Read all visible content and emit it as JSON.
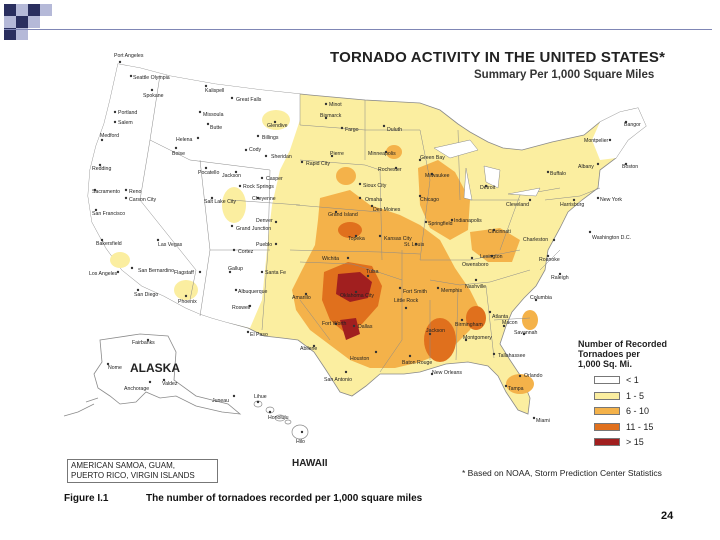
{
  "title": "TORNADO ACTIVITY IN THE UNITED STATES*",
  "subtitle": "Summary Per 1,000 Square Miles",
  "legend": {
    "title_lines": [
      "Number of Recorded",
      "Tornadoes per",
      "1,000 Sq. Mi."
    ],
    "items": [
      {
        "label": "< 1",
        "color": "#ffffff"
      },
      {
        "label": "1 - 5",
        "color": "#fbeea0"
      },
      {
        "label": "6 - 10",
        "color": "#f4b24a"
      },
      {
        "label": "11 - 15",
        "color": "#e0701d"
      },
      {
        "label": "> 15",
        "color": "#a11f1f"
      }
    ]
  },
  "territories_note": [
    "AMERICAN SAMOA, GUAM,",
    "PUERTO RICO, VIRGIN ISLANDS"
  ],
  "source_note": "* Based on NOAA, Storm Prediction Center Statistics",
  "region_labels": {
    "alaska": "ALASKA",
    "hawaii": "HAWAII"
  },
  "caption": {
    "figure": "Figure I.1",
    "text": "The number of tornadoes recorded per 1,000 square miles"
  },
  "page_number": "24",
  "colors": {
    "land": "#fbeea0",
    "no_data": "#ffffff",
    "border": "#8a8a8a",
    "moderate": "#f4b24a",
    "high": "#e0701d",
    "very_high": "#a11f1f"
  },
  "cities": [
    {
      "name": "Port Angeles"
    },
    {
      "name": "Seattle Olympia"
    },
    {
      "name": "Spokane"
    },
    {
      "name": "Portland"
    },
    {
      "name": "Salem"
    },
    {
      "name": "Medford"
    },
    {
      "name": "Redding"
    },
    {
      "name": "Sacramento"
    },
    {
      "name": "Reno"
    },
    {
      "name": "Carson City"
    },
    {
      "name": "San Francisco"
    },
    {
      "name": "Bakersfield"
    },
    {
      "name": "Las Vegas"
    },
    {
      "name": "Los Angeles"
    },
    {
      "name": "San Bernardino"
    },
    {
      "name": "San Diego"
    },
    {
      "name": "Phoenix"
    },
    {
      "name": "Flagstaff"
    },
    {
      "name": "Gallup"
    },
    {
      "name": "Santa Fe"
    },
    {
      "name": "Albuquerque"
    },
    {
      "name": "Roswell"
    },
    {
      "name": "El Paso"
    },
    {
      "name": "Boise"
    },
    {
      "name": "Pocatello"
    },
    {
      "name": "Salt Lake City"
    },
    {
      "name": "Helena"
    },
    {
      "name": "Butte"
    },
    {
      "name": "Kalispell"
    },
    {
      "name": "Great Falls"
    },
    {
      "name": "Missoula"
    },
    {
      "name": "Billings"
    },
    {
      "name": "Glendive"
    },
    {
      "name": "Cody"
    },
    {
      "name": "Sheridan"
    },
    {
      "name": "Casper"
    },
    {
      "name": "Jackson"
    },
    {
      "name": "Rock Springs"
    },
    {
      "name": "Cheyenne"
    },
    {
      "name": "Denver"
    },
    {
      "name": "Grand Junction"
    },
    {
      "name": "Pueblo"
    },
    {
      "name": "Cortez"
    },
    {
      "name": "Minot"
    },
    {
      "name": "Bismarck"
    },
    {
      "name": "Fargo"
    },
    {
      "name": "Pierre"
    },
    {
      "name": "Rapid City"
    },
    {
      "name": "Duluth"
    },
    {
      "name": "Minneapolis"
    },
    {
      "name": "Rochester"
    },
    {
      "name": "Green Bay"
    },
    {
      "name": "Milwaukee"
    },
    {
      "name": "Sioux City"
    },
    {
      "name": "Omaha"
    },
    {
      "name": "Des Moines"
    },
    {
      "name": "Grand Island"
    },
    {
      "name": "Chicago"
    },
    {
      "name": "Springfield"
    },
    {
      "name": "Indianapolis"
    },
    {
      "name": "Topeka"
    },
    {
      "name": "Kansas City"
    },
    {
      "name": "St. Louis"
    },
    {
      "name": "Wichita"
    },
    {
      "name": "Amarillo"
    },
    {
      "name": "Tulsa"
    },
    {
      "name": "Oklahoma City"
    },
    {
      "name": "Fort Smith"
    },
    {
      "name": "Little Rock"
    },
    {
      "name": "Memphis"
    },
    {
      "name": "Nashville"
    },
    {
      "name": "Owensboro"
    },
    {
      "name": "Lexington"
    },
    {
      "name": "Cincinnati"
    },
    {
      "name": "Detroit"
    },
    {
      "name": "Cleveland"
    },
    {
      "name": "Buffalo"
    },
    {
      "name": "Albany"
    },
    {
      "name": "Montpelier"
    },
    {
      "name": "Bangor"
    },
    {
      "name": "Boston"
    },
    {
      "name": "New York"
    },
    {
      "name": "Harrisburg"
    },
    {
      "name": "Washington D.C."
    },
    {
      "name": "Charleston"
    },
    {
      "name": "Roanoke"
    },
    {
      "name": "Raleigh"
    },
    {
      "name": "Columbia"
    },
    {
      "name": "Atlanta"
    },
    {
      "name": "Macon"
    },
    {
      "name": "Savannah"
    },
    {
      "name": "Birmingham"
    },
    {
      "name": "Montgomery"
    },
    {
      "name": "Jackson"
    },
    {
      "name": "Baton Rouge"
    },
    {
      "name": "New Orleans"
    },
    {
      "name": "Tallahassee"
    },
    {
      "name": "Orlando"
    },
    {
      "name": "Tampa"
    },
    {
      "name": "Miami"
    },
    {
      "name": "Fort Worth"
    },
    {
      "name": "Dallas"
    },
    {
      "name": "Abilene"
    },
    {
      "name": "Houston"
    },
    {
      "name": "San Antonio"
    },
    {
      "name": "Fairbanks"
    },
    {
      "name": "Nome"
    },
    {
      "name": "Anchorage"
    },
    {
      "name": "Valdez"
    },
    {
      "name": "Juneau"
    },
    {
      "name": "Honolulu"
    },
    {
      "name": "Hilo"
    },
    {
      "name": "Lihue"
    }
  ]
}
